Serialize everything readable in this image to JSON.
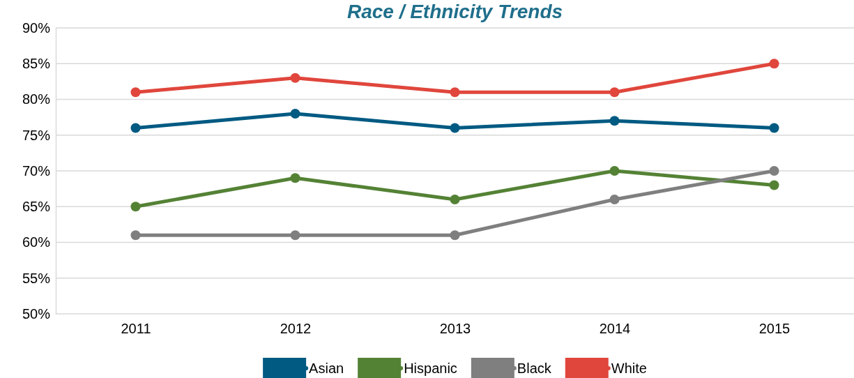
{
  "chart_data": {
    "type": "line",
    "title": "Race / Ethnicity Trends",
    "categories": [
      "2011",
      "2012",
      "2013",
      "2014",
      "2015"
    ],
    "series": [
      {
        "name": "Asian",
        "color": "#005a82",
        "values": [
          76,
          78,
          76,
          77,
          76
        ]
      },
      {
        "name": "Hispanic",
        "color": "#548235",
        "values": [
          65,
          69,
          66,
          70,
          68
        ]
      },
      {
        "name": "Black",
        "color": "#7f7f7f",
        "values": [
          61,
          61,
          61,
          66,
          70
        ]
      },
      {
        "name": "White",
        "color": "#e0463c",
        "values": [
          81,
          83,
          81,
          81,
          85
        ]
      }
    ],
    "ylim": [
      50,
      90
    ],
    "yticks": [
      {
        "value": 50,
        "label": "50%"
      },
      {
        "value": 55,
        "label": "55%"
      },
      {
        "value": 60,
        "label": "60%"
      },
      {
        "value": 65,
        "label": "65%"
      },
      {
        "value": 70,
        "label": "70%"
      },
      {
        "value": 75,
        "label": "75%"
      },
      {
        "value": 80,
        "label": "80%"
      },
      {
        "value": 85,
        "label": "85%"
      },
      {
        "value": 90,
        "label": "90%"
      }
    ],
    "grid": "y",
    "legend": "bottom",
    "marker": "circle",
    "line_style": "solid"
  }
}
